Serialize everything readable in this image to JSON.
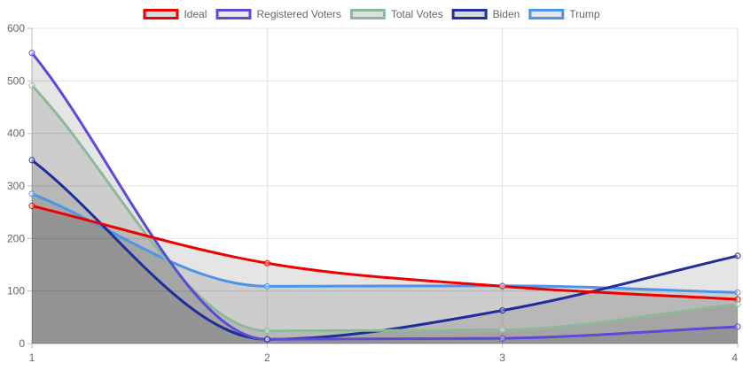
{
  "chart_data": {
    "type": "area",
    "x": [
      1,
      2,
      3,
      4
    ],
    "ylim": [
      0,
      600
    ],
    "y_ticks": [
      0,
      100,
      200,
      300,
      400,
      500,
      600
    ],
    "x_ticks": [
      1,
      2,
      3,
      4
    ],
    "grid": true,
    "legend_position": "top",
    "series": [
      {
        "name": "Ideal",
        "values": [
          262,
          153,
          109,
          84
        ],
        "color": "#ee0000",
        "fill": "#dcdcdc"
      },
      {
        "name": "Registered Voters",
        "values": [
          553,
          8,
          10,
          32
        ],
        "color": "#5b4bd6",
        "fill": "#e9e9e9"
      },
      {
        "name": "Total Votes",
        "values": [
          491,
          24,
          26,
          75
        ],
        "color": "#8fb89a",
        "fill": "#dedede"
      },
      {
        "name": "Biden",
        "values": [
          349,
          8,
          63,
          167
        ],
        "color": "#1f2e9a",
        "fill": "#d8d8d8"
      },
      {
        "name": "Trump",
        "values": [
          285,
          109,
          110,
          97
        ],
        "color": "#4c94e6",
        "fill": "#e6e6e6"
      }
    ]
  }
}
